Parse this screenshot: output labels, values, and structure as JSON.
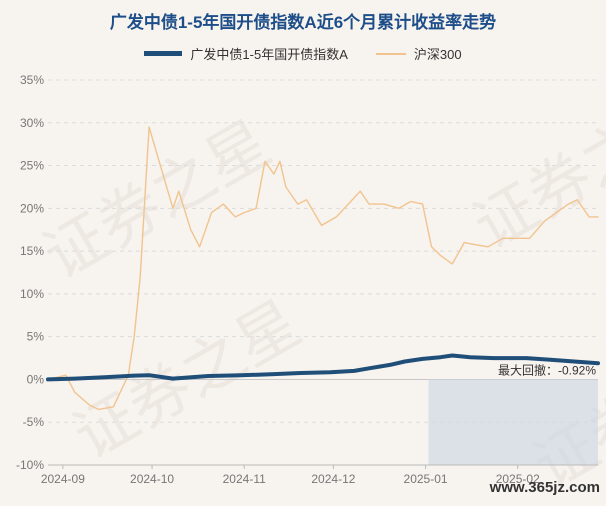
{
  "title": "广发中债1-5年国开债指数A近6个月累计收益率走势",
  "watermark": "证券之星",
  "footer_url": "www.365jz.com",
  "colors": {
    "bond_series": "#1f4e79",
    "index_series": "#f1c48f",
    "drawdown_shade": "#cfd9e3",
    "title": "#1d4e89"
  },
  "chart_data": {
    "type": "line",
    "title": "广发中债1-5年国开债指数A近6个月累计收益率走势",
    "xlabel": "",
    "ylabel": "",
    "y_ticks": [
      "35%",
      "30%",
      "25%",
      "20%",
      "15%",
      "10%",
      "5%",
      "0%",
      "-5%",
      "-10%"
    ],
    "ylim": [
      -10,
      35
    ],
    "x_ticks": [
      "2024-09",
      "2024-10",
      "2024-11",
      "2024-12",
      "2025-01",
      "2025-02"
    ],
    "legend_position": "top-center",
    "grid": "horizontal dashed",
    "annotation": "最大回撤：-0.92%",
    "drawdown_period": [
      "2025-01-02",
      "2025-02-28"
    ],
    "series": [
      {
        "name": "广发中债1-5年国开债指数A",
        "points": [
          [
            "2024-08-27",
            0.0
          ],
          [
            "2024-09-05",
            0.1
          ],
          [
            "2024-09-15",
            0.25
          ],
          [
            "2024-09-25",
            0.45
          ],
          [
            "2024-09-30",
            0.5
          ],
          [
            "2024-10-08",
            0.1
          ],
          [
            "2024-10-12",
            0.2
          ],
          [
            "2024-10-20",
            0.4
          ],
          [
            "2024-10-31",
            0.5
          ],
          [
            "2024-11-10",
            0.6
          ],
          [
            "2024-11-20",
            0.75
          ],
          [
            "2024-11-30",
            0.85
          ],
          [
            "2024-12-08",
            1.0
          ],
          [
            "2024-12-13",
            1.3
          ],
          [
            "2024-12-20",
            1.7
          ],
          [
            "2024-12-25",
            2.1
          ],
          [
            "2024-12-31",
            2.4
          ],
          [
            "2025-01-06",
            2.6
          ],
          [
            "2025-01-10",
            2.8
          ],
          [
            "2025-01-16",
            2.6
          ],
          [
            "2025-01-24",
            2.5
          ],
          [
            "2025-02-04",
            2.5
          ],
          [
            "2025-02-12",
            2.3
          ],
          [
            "2025-02-20",
            2.1
          ],
          [
            "2025-02-28",
            1.9
          ]
        ]
      },
      {
        "name": "沪深300",
        "points": [
          [
            "2024-08-27",
            0.0
          ],
          [
            "2024-09-02",
            0.5
          ],
          [
            "2024-09-05",
            -1.5
          ],
          [
            "2024-09-10",
            -3.0
          ],
          [
            "2024-09-13",
            -3.5
          ],
          [
            "2024-09-18",
            -3.2
          ],
          [
            "2024-09-23",
            0.5
          ],
          [
            "2024-09-25",
            5.0
          ],
          [
            "2024-09-27",
            12.0
          ],
          [
            "2024-09-30",
            29.5
          ],
          [
            "2024-10-08",
            20.0
          ],
          [
            "2024-10-10",
            22.0
          ],
          [
            "2024-10-14",
            17.5
          ],
          [
            "2024-10-17",
            15.5
          ],
          [
            "2024-10-21",
            19.5
          ],
          [
            "2024-10-25",
            20.5
          ],
          [
            "2024-10-29",
            19.0
          ],
          [
            "2024-11-01",
            19.5
          ],
          [
            "2024-11-05",
            20.0
          ],
          [
            "2024-11-08",
            25.5
          ],
          [
            "2024-11-11",
            24.0
          ],
          [
            "2024-11-13",
            25.5
          ],
          [
            "2024-11-15",
            22.5
          ],
          [
            "2024-11-19",
            20.5
          ],
          [
            "2024-11-22",
            21.0
          ],
          [
            "2024-11-27",
            18.0
          ],
          [
            "2024-12-02",
            19.0
          ],
          [
            "2024-12-06",
            20.5
          ],
          [
            "2024-12-10",
            22.0
          ],
          [
            "2024-12-13",
            20.5
          ],
          [
            "2024-12-18",
            20.5
          ],
          [
            "2024-12-23",
            20.0
          ],
          [
            "2024-12-27",
            20.8
          ],
          [
            "2024-12-31",
            20.5
          ],
          [
            "2025-01-03",
            15.5
          ],
          [
            "2025-01-06",
            14.5
          ],
          [
            "2025-01-10",
            13.5
          ],
          [
            "2025-01-14",
            16.0
          ],
          [
            "2025-01-17",
            15.8
          ],
          [
            "2025-01-22",
            15.5
          ],
          [
            "2025-01-27",
            16.5
          ],
          [
            "2025-02-05",
            16.5
          ],
          [
            "2025-02-10",
            18.5
          ],
          [
            "2025-02-14",
            19.5
          ],
          [
            "2025-02-18",
            20.5
          ],
          [
            "2025-02-21",
            21.0
          ],
          [
            "2025-02-25",
            19.0
          ],
          [
            "2025-02-28",
            19.0
          ]
        ]
      }
    ]
  }
}
